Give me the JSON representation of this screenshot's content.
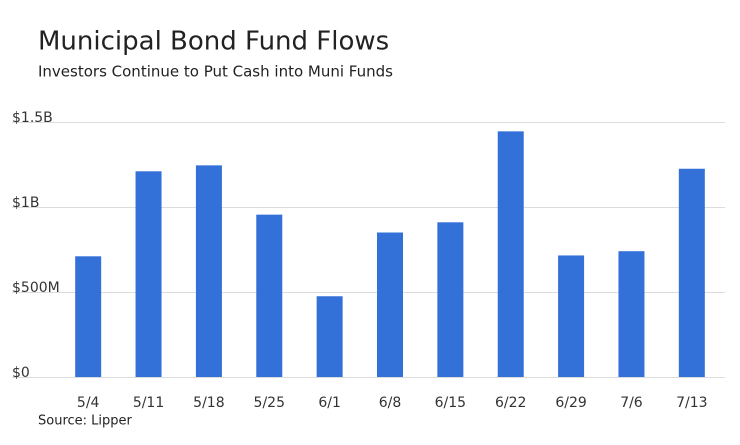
{
  "chart_data": {
    "type": "bar",
    "title": "Municipal Bond Fund Flows",
    "subtitle": "Investors Continue to Put Cash into Muni Funds",
    "source": "Source: Lipper",
    "categories": [
      "5/4",
      "5/11",
      "5/18",
      "5/25",
      "6/1",
      "6/8",
      "6/15",
      "6/22",
      "6/29",
      "7/6",
      "7/13"
    ],
    "values": [
      710000000,
      1210000000,
      1245000000,
      955000000,
      475000000,
      850000000,
      910000000,
      1445000000,
      715000000,
      740000000,
      1225000000
    ],
    "color": "#3370d8",
    "ylim": [
      0,
      1500000000
    ],
    "yticks": [
      {
        "value": 0,
        "label": "$0"
      },
      {
        "value": 500000000,
        "label": "$500M"
      },
      {
        "value": 1000000000,
        "label": "$1B"
      },
      {
        "value": 1500000000,
        "label": "$1.5B"
      }
    ],
    "grid": true
  }
}
